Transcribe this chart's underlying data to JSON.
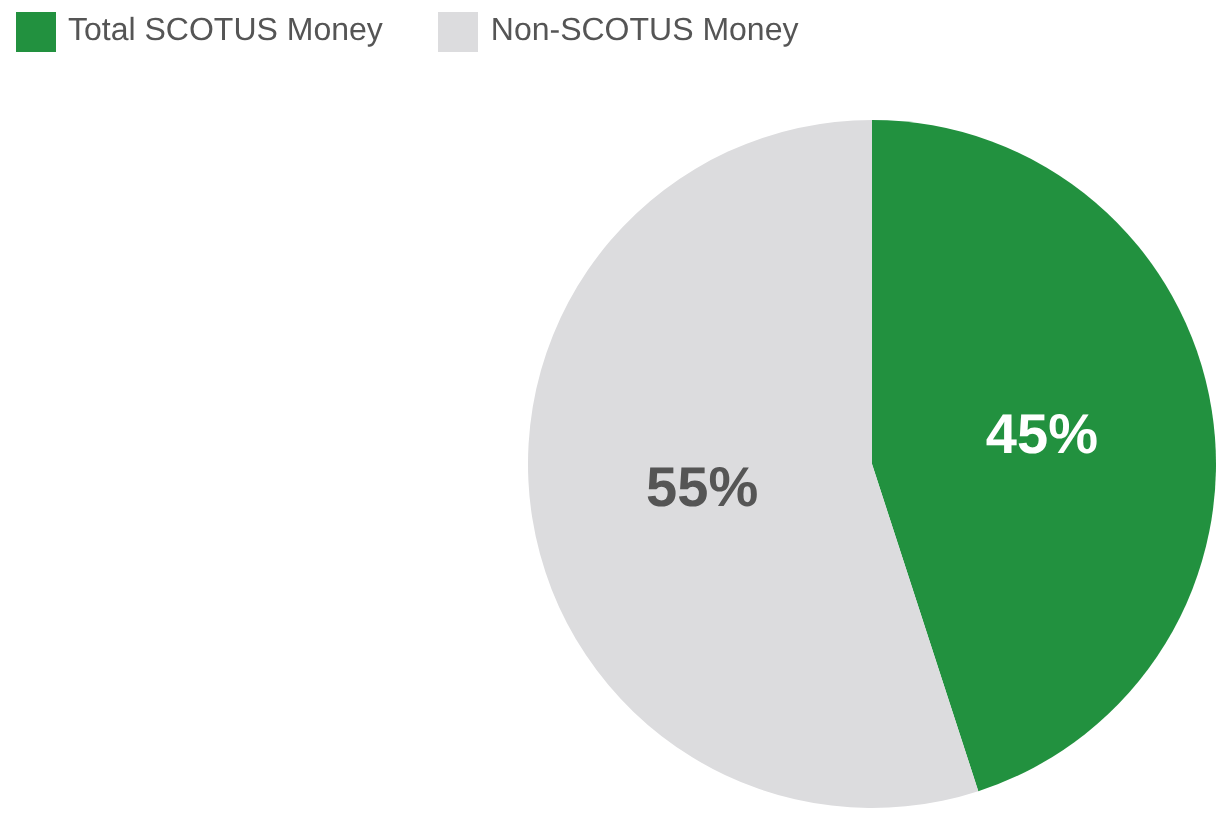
{
  "chart_data": {
    "type": "pie",
    "categories": [
      "Total SCOTUS Money",
      "Non-SCOTUS Money"
    ],
    "values": [
      45,
      55
    ],
    "value_labels": [
      "45%",
      "55%"
    ],
    "colors": [
      "#22913f",
      "#dcdcde"
    ],
    "legend": "top left"
  }
}
